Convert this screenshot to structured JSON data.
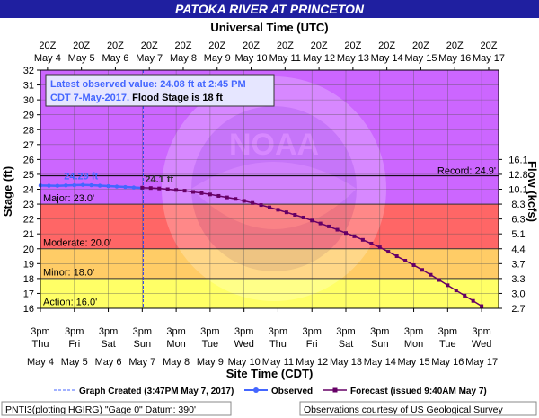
{
  "chart_data": {
    "type": "line",
    "title": "PATOKA RIVER AT PRINCETON",
    "top_axis_title": "Universal Time (UTC)",
    "bottom_axis_title": "Site Time (CDT)",
    "ylabel": "Stage (ft)",
    "y2label": "Flow (kcfs)",
    "ylim": [
      16,
      32
    ],
    "y_ticks": [
      16,
      17,
      18,
      19,
      20,
      21,
      22,
      23,
      24,
      25,
      26,
      27,
      28,
      29,
      30,
      31,
      32
    ],
    "xlim": [
      0,
      13.5
    ],
    "x_unit": "days after 3pm CDT May 4, 2017",
    "top_ticks": [
      {
        "t": "20Z",
        "b": "May 4"
      },
      {
        "t": "20Z",
        "b": "May 5"
      },
      {
        "t": "20Z",
        "b": "May 6"
      },
      {
        "t": "20Z",
        "b": "May 7"
      },
      {
        "t": "20Z",
        "b": "May 8"
      },
      {
        "t": "20Z",
        "b": "May 9"
      },
      {
        "t": "20Z",
        "b": "May 10"
      },
      {
        "t": "20Z",
        "b": "May 11"
      },
      {
        "t": "20Z",
        "b": "May 12"
      },
      {
        "t": "20Z",
        "b": "May 13"
      },
      {
        "t": "20Z",
        "b": "May 14"
      },
      {
        "t": "20Z",
        "b": "May 15"
      },
      {
        "t": "20Z",
        "b": "May 16"
      },
      {
        "t": "20Z",
        "b": "May 17"
      }
    ],
    "bottom_ticks": [
      {
        "t": "3pm",
        "b": "Thu",
        "d": "May 4"
      },
      {
        "t": "3pm",
        "b": "Fri",
        "d": "May 5"
      },
      {
        "t": "3pm",
        "b": "Sat",
        "d": "May 6"
      },
      {
        "t": "3pm",
        "b": "Sun",
        "d": "May 7"
      },
      {
        "t": "3pm",
        "b": "Mon",
        "d": "May 8"
      },
      {
        "t": "3pm",
        "b": "Tue",
        "d": "May 9"
      },
      {
        "t": "3pm",
        "b": "Wed",
        "d": "May 10"
      },
      {
        "t": "3pm",
        "b": "Thu",
        "d": "May 11"
      },
      {
        "t": "3pm",
        "b": "Fri",
        "d": "May 12"
      },
      {
        "t": "3pm",
        "b": "Sat",
        "d": "May 13"
      },
      {
        "t": "3pm",
        "b": "Sun",
        "d": "May 14"
      },
      {
        "t": "3pm",
        "b": "Mon",
        "d": "May 15"
      },
      {
        "t": "3pm",
        "b": "Tue",
        "d": "May 16"
      },
      {
        "t": "3pm",
        "b": "Wed",
        "d": "May 17"
      }
    ],
    "flow_ticks": [
      {
        "stage": 16,
        "label": "2.7"
      },
      {
        "stage": 17,
        "label": "3.0"
      },
      {
        "stage": 18,
        "label": "3.3"
      },
      {
        "stage": 19,
        "label": "3.7"
      },
      {
        "stage": 20,
        "label": "4.4"
      },
      {
        "stage": 21,
        "label": "5.1"
      },
      {
        "stage": 22,
        "label": "6.3"
      },
      {
        "stage": 23,
        "label": "8.3"
      },
      {
        "stage": 24,
        "label": "10.1"
      },
      {
        "stage": 25,
        "label": "12.8"
      },
      {
        "stage": 26,
        "label": "16.1"
      }
    ],
    "bands": [
      {
        "name": "Action",
        "from": 16,
        "to": 18,
        "color": "#ffff66"
      },
      {
        "name": "Minor",
        "from": 18,
        "to": 20,
        "color": "#ffcc66"
      },
      {
        "name": "Moderate",
        "from": 20,
        "to": 23,
        "color": "#ff6666"
      },
      {
        "name": "Major",
        "from": 23,
        "to": 32,
        "color": "#cc66ff"
      }
    ],
    "band_labels": [
      {
        "label": "Action: 16.0'",
        "y": 16.2
      },
      {
        "label": "Minor: 18.0'",
        "y": 18.2
      },
      {
        "label": "Moderate: 20.0'",
        "y": 20.2
      },
      {
        "label": "Major: 23.0'",
        "y": 23.2
      }
    ],
    "record": {
      "label": "Record: 24.9'",
      "value": 24.9
    },
    "graph_created_x": 3.03,
    "series": [
      {
        "name": "Observed",
        "color": "#4466ff",
        "x": [
          0,
          0.25,
          0.5,
          0.75,
          1,
          1.25,
          1.5,
          1.75,
          2,
          2.25,
          2.5,
          2.75,
          3.0
        ],
        "y": [
          24.25,
          24.24,
          24.23,
          24.25,
          24.27,
          24.29,
          24.27,
          24.24,
          24.21,
          24.18,
          24.15,
          24.12,
          24.08
        ]
      },
      {
        "name": "Forecast",
        "color": "#660066",
        "x": [
          3.0,
          3.25,
          3.5,
          3.75,
          4.0,
          4.25,
          4.5,
          4.75,
          5.0,
          5.25,
          5.5,
          5.75,
          6.0,
          6.25,
          6.5,
          6.75,
          7.0,
          7.25,
          7.5,
          7.75,
          8.0,
          8.25,
          8.5,
          8.75,
          9.0,
          9.25,
          9.5,
          9.75,
          10.0,
          10.25,
          10.5,
          10.75,
          11.0,
          11.25,
          11.5,
          11.75,
          12.0,
          12.25,
          12.5,
          12.75,
          13.0
        ],
        "y": [
          24.1,
          24.08,
          24.05,
          24.0,
          23.95,
          23.9,
          23.82,
          23.74,
          23.65,
          23.55,
          23.45,
          23.35,
          23.22,
          23.08,
          22.94,
          22.78,
          22.62,
          22.45,
          22.28,
          22.1,
          21.9,
          21.7,
          21.5,
          21.28,
          21.06,
          20.84,
          20.6,
          20.35,
          20.1,
          19.8,
          19.5,
          19.2,
          18.9,
          18.58,
          18.25,
          17.9,
          17.55,
          17.2,
          16.85,
          16.5,
          16.15
        ]
      }
    ],
    "annotations": [
      {
        "text": "24.29 ft",
        "x": 1.25,
        "y": 24.29,
        "color": "#4466ff"
      },
      {
        "text": "24.1 ft",
        "x": 3.0,
        "y": 24.1,
        "color": "#333333"
      }
    ],
    "info_box": {
      "line1": "Latest observed value: 24.08 ft at 2:45 PM",
      "line2_colored": "CDT 7-May-2017.",
      "line2_plain": " Flood Stage is 18 ft"
    },
    "legend": {
      "graph_created": "Graph Created (3:47PM May 7, 2017)",
      "observed": "Observed",
      "forecast": "Forecast (issued 9:40AM May 7)"
    },
    "footer_left": "PNTI3(plotting HGIRG) \"Gage 0\" Datum: 390'",
    "footer_right": "Observations courtesy of US Geological Survey",
    "watermark_text": "NOAA"
  },
  "colors": {
    "title_bg": "#1f1fa0",
    "title_fg": "#ffffff",
    "observed": "#4466ff",
    "forecast": "#660066"
  }
}
